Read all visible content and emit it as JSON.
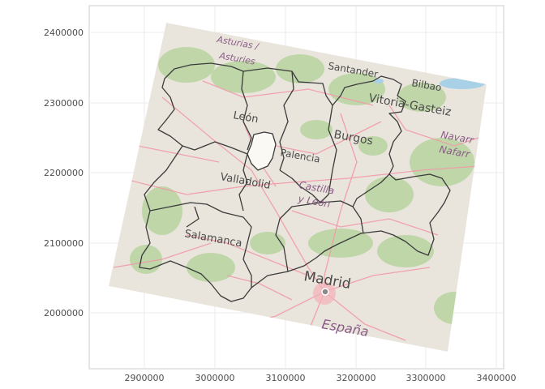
{
  "chart_data": {
    "type": "map",
    "grid": true,
    "x_ticks": [
      "2900000",
      "3000000",
      "3100000",
      "3200000",
      "3300000",
      "3400000"
    ],
    "y_ticks": [
      "2400000",
      "2300000",
      "2200000",
      "2100000",
      "2000000"
    ],
    "xlim": [
      2830000,
      3410000
    ],
    "ylim": [
      1935000,
      2460000
    ],
    "basemap": {
      "colors": {
        "land": "#e9e5dc",
        "forest": "#b5d29c",
        "water": "#a8d0e6",
        "roads": "#f19aa8",
        "boundary": "#3a3a3a",
        "highlight": "#fbf9f4",
        "city": "#e4606e",
        "region_text": "#8a5a86"
      }
    },
    "place_labels": {
      "asturias": "Asturias /",
      "asturies": "Asturies",
      "santander": "Santander",
      "bilbao": "Bilbao",
      "vitoria": "Vitoria-Gasteiz",
      "leon": "León",
      "burgos": "Burgos",
      "navarra": "Navarr",
      "nafarroa": "Nafarr",
      "palencia": "Palencia",
      "valladolid": "Valladolid",
      "castilla": "Castilla",
      "y_leon": "y León",
      "salamanca": "Salamanca",
      "madrid": "Madrid",
      "espana": "España"
    }
  }
}
